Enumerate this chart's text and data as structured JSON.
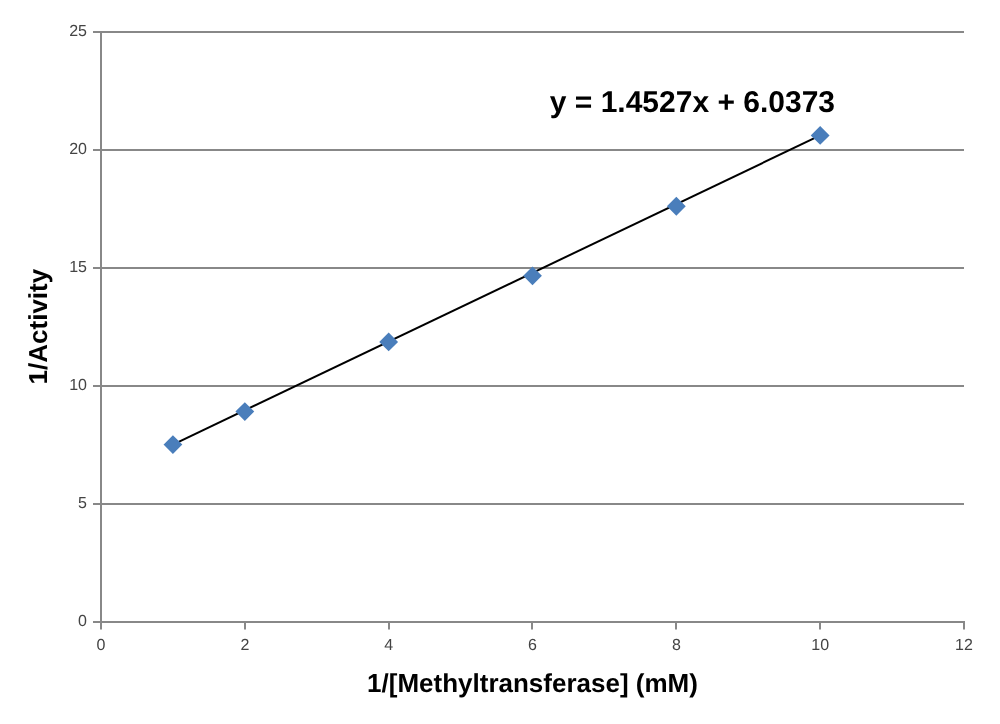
{
  "chart_data": {
    "type": "scatter",
    "xlabel": "1/[Methyltransferase] (mM)",
    "ylabel": "1/Activity",
    "xlim": [
      0,
      12
    ],
    "xticks": [
      0,
      2,
      4,
      6,
      8,
      10,
      12
    ],
    "ylim": [
      0,
      25
    ],
    "yticks": [
      0,
      5,
      10,
      15,
      20,
      25
    ],
    "grid": "y",
    "legend": false,
    "marker": "diamond",
    "series": [
      {
        "color": "#4a7ebb",
        "x": [
          1,
          2,
          4,
          6,
          8,
          10
        ],
        "values": [
          7.5,
          8.9,
          11.85,
          14.65,
          17.6,
          20.6
        ]
      },
      {
        "type": "line",
        "color": "#000000",
        "marker": "none",
        "line_style": "solid",
        "x": [
          1,
          10
        ],
        "values": [
          7.5,
          20.6
        ]
      }
    ],
    "annotations": [
      "y = 1.4527x + 6.0373"
    ]
  }
}
